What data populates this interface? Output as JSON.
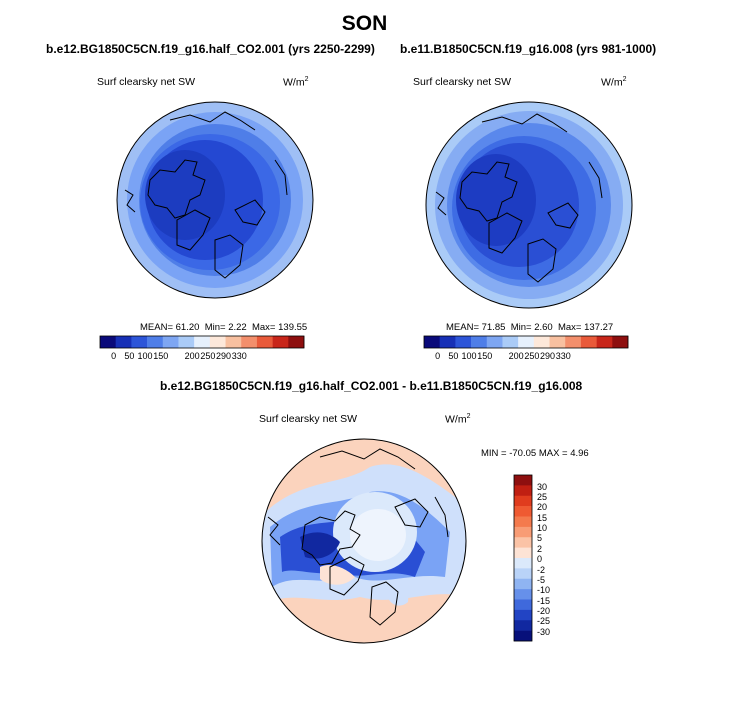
{
  "figure": {
    "season": "SON",
    "colors": {
      "land_outline": "#000000",
      "deep_blue": "#1f3fc8",
      "mid_blue": "#3b68e6",
      "light_blue": "#7aa3f5",
      "pale_blue": "#cfe0fb",
      "pale_red": "#f8cbb4",
      "light_red": "#f5a07e"
    }
  },
  "panels": [
    {
      "id": "left",
      "title": "b.e12.BG1850C5CN.f19_g16.half_CO2.001 (yrs 2250-2299)",
      "variable": "Surf clearsky net SW",
      "units_base": "W/m",
      "units_exp": "2",
      "stats": {
        "mean_label": "MEAN=",
        "mean": "61.20",
        "min_label": "Min=",
        "min": "2.22",
        "max_label": "Max=",
        "max": "139.55"
      }
    },
    {
      "id": "right",
      "title": "b.e11.B1850C5CN.f19_g16.008 (yrs 981-1000)",
      "variable": "Surf clearsky net SW",
      "units_base": "W/m",
      "units_exp": "2",
      "stats": {
        "mean_label": "MEAN=",
        "mean": "71.85",
        "min_label": "Min=",
        "min": "2.60",
        "max_label": "Max=",
        "max": "137.27"
      }
    }
  ],
  "top_colorbar": {
    "ticks": [
      "0",
      "50",
      "100",
      "150",
      "200",
      "250",
      "290",
      "330"
    ],
    "colors": [
      "#0a0a7a",
      "#1730b6",
      "#2d55d8",
      "#4f7ee8",
      "#7ea6f2",
      "#aacbf7",
      "#e6f0fc",
      "#fde8da",
      "#f8c0a0",
      "#f38f6c",
      "#e95a3a",
      "#c8261a",
      "#8e0f0f"
    ]
  },
  "diff_panel": {
    "title": "b.e12.BG1850C5CN.f19_g16.half_CO2.001 - b.e11.B1850C5CN.f19_g16.008",
    "variable": "Surf clearsky net SW",
    "units_base": "W/m",
    "units_exp": "2",
    "minmax": "MIN = -70.05 MAX =   4.96"
  },
  "diff_colorbar": {
    "ticks": [
      "30",
      "25",
      "20",
      "15",
      "10",
      "5",
      "2",
      "0",
      "-2",
      "-5",
      "-10",
      "-15",
      "-20",
      "-25",
      "-30"
    ],
    "colors": [
      "#8e0f0f",
      "#c01f12",
      "#e03c1e",
      "#ef5a32",
      "#f47a4d",
      "#f89c75",
      "#fbc3a6",
      "#fde3d5",
      "#dbe9fb",
      "#b9d3f8",
      "#8fb4f2",
      "#6690ea",
      "#3f69dc",
      "#2244c4",
      "#1128a0",
      "#07107a"
    ]
  }
}
